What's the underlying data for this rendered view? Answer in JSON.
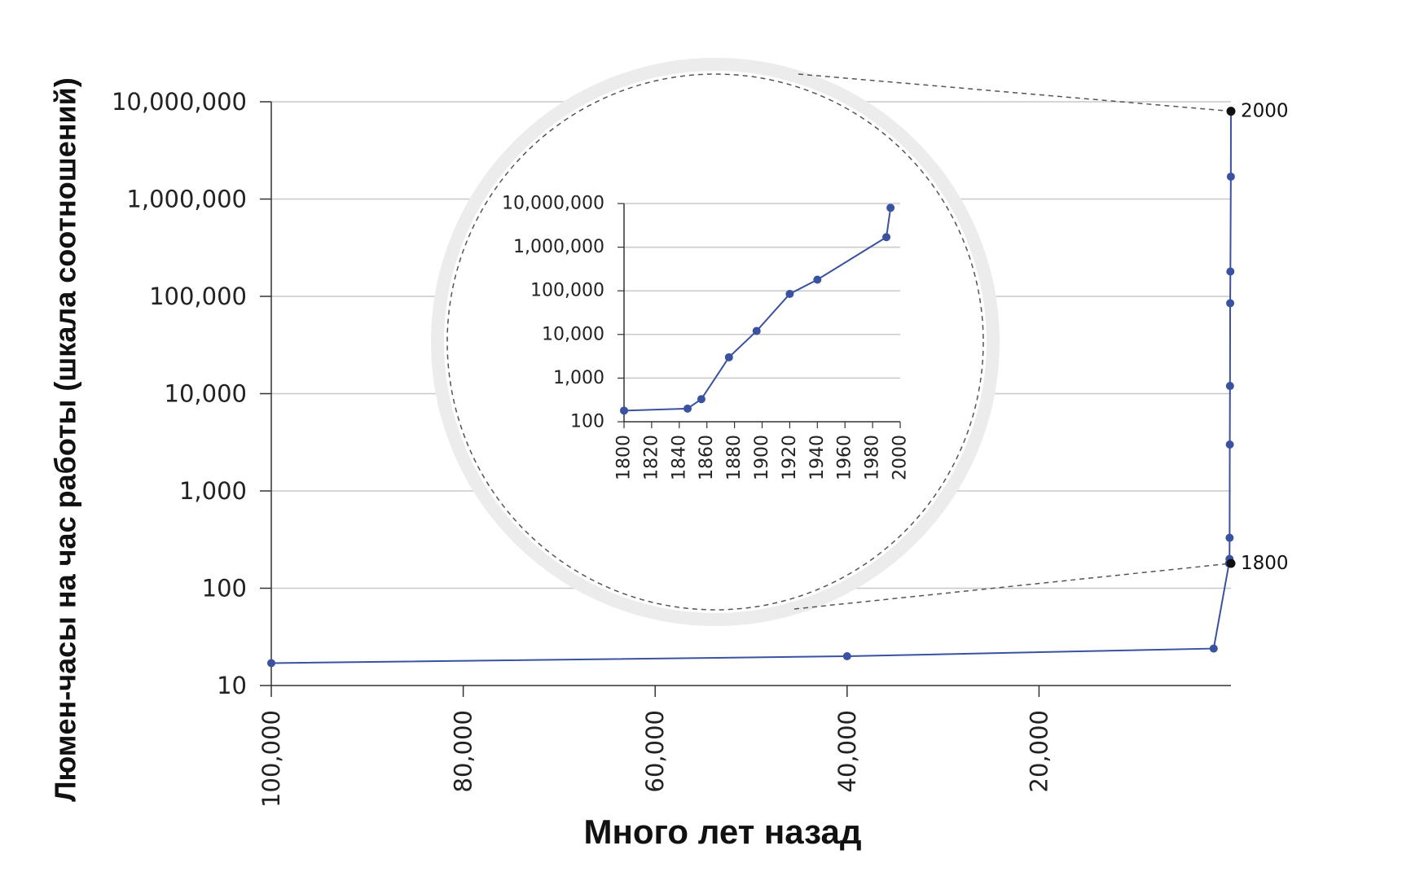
{
  "chart_data": [
    {
      "type": "line",
      "ylabel": "Люмен-часы на час работы (шкала соотношений)",
      "xlabel": "Много лет назад",
      "y_scale": "log",
      "ylim": [
        10,
        10000000
      ],
      "xlim": [
        100000,
        0
      ],
      "x_reversed": true,
      "grid": true,
      "x_ticks": [
        100000,
        80000,
        60000,
        40000,
        20000
      ],
      "x_tick_labels": [
        "100,000",
        "80,000",
        "60,000",
        "40,000",
        "20,000"
      ],
      "y_ticks": [
        10,
        100,
        1000,
        10000,
        100000,
        1000000,
        10000000
      ],
      "y_tick_labels": [
        "10",
        "100",
        "1,000",
        "10,000",
        "100,000",
        "1,000,000",
        "10,000,000"
      ],
      "series": [
        {
          "color": "#3a52a0",
          "points": [
            {
              "x": 100000,
              "y": 17
            },
            {
              "x": 40000,
              "y": 20
            },
            {
              "x": 1800,
              "y": 24
            },
            {
              "x": 200,
              "y": 180
            },
            {
              "x": 150,
              "y": 200
            },
            {
              "x": 140,
              "y": 330
            },
            {
              "x": 120,
              "y": 3000
            },
            {
              "x": 100,
              "y": 12000
            },
            {
              "x": 80,
              "y": 85000
            },
            {
              "x": 60,
              "y": 180000
            },
            {
              "x": 10,
              "y": 1700000
            },
            {
              "x": 2,
              "y": 8000000
            }
          ]
        }
      ],
      "annotations": [
        {
          "text": "2000",
          "x": 0,
          "y": 8000000
        },
        {
          "text": "1800",
          "x": 0,
          "y": 180
        }
      ]
    },
    {
      "type": "line",
      "inset": true,
      "y_scale": "log",
      "ylim": [
        100,
        10000000
      ],
      "xlim": [
        1800,
        2000
      ],
      "grid": true,
      "x_ticks": [
        1800,
        1820,
        1840,
        1860,
        1880,
        1900,
        1920,
        1940,
        1960,
        1980,
        2000
      ],
      "x_tick_labels": [
        "1800",
        "1820",
        "1840",
        "1860",
        "1880",
        "1900",
        "1920",
        "1940",
        "1960",
        "1980",
        "2000"
      ],
      "y_ticks": [
        100,
        1000,
        10000,
        100000,
        1000000,
        10000000
      ],
      "y_tick_labels": [
        "100",
        "1,000",
        "10,000",
        "100,000",
        "1,000,000",
        "10,000,000"
      ],
      "series": [
        {
          "color": "#3a52a0",
          "points": [
            {
              "x": 1800,
              "y": 180
            },
            {
              "x": 1846,
              "y": 200
            },
            {
              "x": 1856,
              "y": 330
            },
            {
              "x": 1876,
              "y": 3000
            },
            {
              "x": 1896,
              "y": 12000
            },
            {
              "x": 1920,
              "y": 85000
            },
            {
              "x": 1940,
              "y": 180000
            },
            {
              "x": 1990,
              "y": 1700000
            },
            {
              "x": 1993,
              "y": 8000000
            }
          ]
        }
      ]
    }
  ],
  "colors": {
    "line": "#3a52a0",
    "grid": "#c8c8c8",
    "axis": "#333333",
    "highlight_point": "#111111",
    "magnifier_ring": "#ececec",
    "dashed": "#555555"
  }
}
